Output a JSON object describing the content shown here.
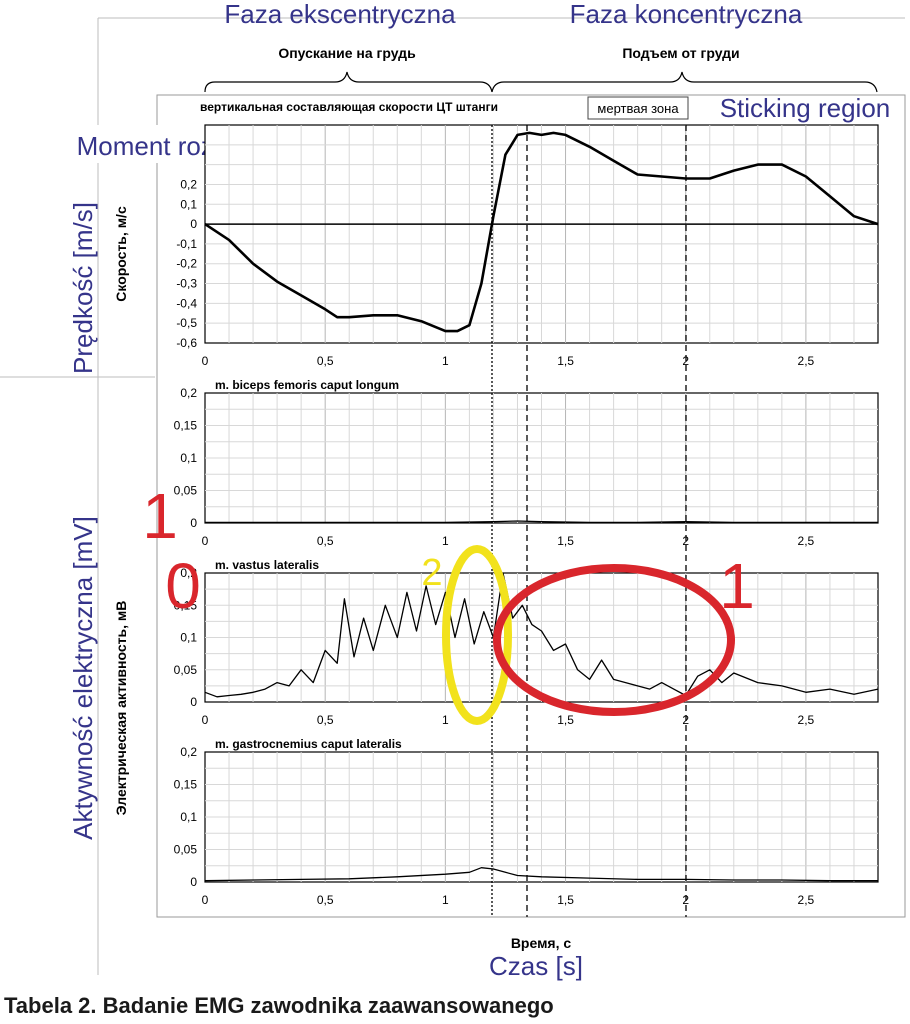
{
  "caption": "Tabela 2. Badanie EMG zawodnika zaawansowanego",
  "phases": {
    "eccentric_pl": "Faza ekscentryczna",
    "concentric_pl": "Faza koncentryczna",
    "eccentric_ru": "Опускание на грудь",
    "concentric_ru": "Подъем от груди"
  },
  "annotations": {
    "velocity_component_ru": "вертикальная составляющая скорости ЦТ штанги",
    "dead_zone_ru": "мертвая зона",
    "sticking_region": "Sticking region",
    "press_start": "Moment rozpoczęcia wyciskania",
    "marker_1_left": "1",
    "marker_0": "0",
    "marker_2": "2",
    "marker_1_right": "1"
  },
  "axes": {
    "velocity_ylabel_ru": "Скорость, м/с",
    "velocity_ylabel_pl": "Prędkość [m/s]",
    "emg_ylabel_ru": "Электрическая активность, мВ",
    "emg_ylabel_pl": "Aktywność elektryczna [mV]",
    "xlabel_ru": "Время, с",
    "xlabel_pl": "Czas [s]",
    "x_ticks": [
      "0",
      "0,5",
      "1",
      "1,5",
      "2",
      "2,5"
    ],
    "velocity_y_ticks": [
      "0,2",
      "0,1",
      "0",
      "-0,1",
      "-0,2",
      "-0,3",
      "-0,4",
      "-0,5",
      "-0,6"
    ],
    "emg_y_ticks": [
      "0,2",
      "0,15",
      "0,1",
      "0,05",
      "0"
    ]
  },
  "colors": {
    "text_blue": "#35348a",
    "marker_red": "#d9262c",
    "marker_yellow": "#f2e21c",
    "grid": "#c8c8c8",
    "line": "#000000"
  },
  "chart_data": [
    {
      "type": "line",
      "title": "вертикальная составляющая скорости ЦТ штанги",
      "xlabel": "Время, с",
      "ylabel": "Скорость, м/с",
      "xlim": [
        0,
        2.8
      ],
      "ylim": [
        -0.6,
        0.5
      ],
      "grid": true,
      "x": [
        0,
        0.1,
        0.2,
        0.3,
        0.4,
        0.5,
        0.55,
        0.6,
        0.7,
        0.8,
        0.9,
        1.0,
        1.05,
        1.1,
        1.15,
        1.2,
        1.25,
        1.3,
        1.35,
        1.4,
        1.45,
        1.5,
        1.6,
        1.7,
        1.8,
        1.9,
        2.0,
        2.1,
        2.2,
        2.3,
        2.4,
        2.5,
        2.6,
        2.7,
        2.8
      ],
      "values": [
        0,
        -0.08,
        -0.2,
        -0.29,
        -0.36,
        -0.43,
        -0.47,
        -0.47,
        -0.46,
        -0.46,
        -0.49,
        -0.54,
        -0.54,
        -0.51,
        -0.3,
        0.04,
        0.35,
        0.45,
        0.46,
        0.45,
        0.46,
        0.45,
        0.39,
        0.32,
        0.25,
        0.24,
        0.23,
        0.23,
        0.27,
        0.3,
        0.3,
        0.24,
        0.14,
        0.04,
        0.0
      ]
    },
    {
      "type": "line",
      "title": "m. biceps femoris caput longum",
      "xlabel": "Время, с",
      "ylabel": "Электрическая активность, мВ",
      "xlim": [
        0,
        2.8
      ],
      "ylim": [
        0,
        0.2
      ],
      "grid": true,
      "x": [
        0,
        0.2,
        0.4,
        0.6,
        0.8,
        1.0,
        1.2,
        1.3,
        1.4,
        1.6,
        1.8,
        2.0,
        2.2,
        2.4,
        2.6,
        2.8
      ],
      "values": [
        0.001,
        0.001,
        0.001,
        0.001,
        0.001,
        0.001,
        0.002,
        0.003,
        0.002,
        0.001,
        0.001,
        0.002,
        0.001,
        0.001,
        0.001,
        0.001
      ]
    },
    {
      "type": "line",
      "title": "m. vastus lateralis",
      "xlabel": "Время, с",
      "ylabel": "Электрическая активность, мВ",
      "xlim": [
        0,
        2.8
      ],
      "ylim": [
        0,
        0.2
      ],
      "grid": true,
      "x": [
        0,
        0.05,
        0.1,
        0.15,
        0.2,
        0.25,
        0.3,
        0.35,
        0.4,
        0.45,
        0.5,
        0.55,
        0.58,
        0.62,
        0.66,
        0.7,
        0.75,
        0.8,
        0.84,
        0.88,
        0.92,
        0.96,
        1.0,
        1.04,
        1.08,
        1.12,
        1.16,
        1.2,
        1.24,
        1.28,
        1.32,
        1.36,
        1.4,
        1.45,
        1.5,
        1.55,
        1.6,
        1.65,
        1.7,
        1.75,
        1.8,
        1.85,
        1.9,
        1.95,
        2.0,
        2.05,
        2.1,
        2.15,
        2.2,
        2.3,
        2.4,
        2.5,
        2.6,
        2.7,
        2.8
      ],
      "values": [
        0.015,
        0.008,
        0.01,
        0.012,
        0.015,
        0.02,
        0.03,
        0.025,
        0.05,
        0.03,
        0.08,
        0.06,
        0.16,
        0.07,
        0.13,
        0.08,
        0.15,
        0.1,
        0.17,
        0.11,
        0.18,
        0.12,
        0.17,
        0.1,
        0.16,
        0.09,
        0.14,
        0.1,
        0.2,
        0.13,
        0.15,
        0.12,
        0.11,
        0.08,
        0.09,
        0.05,
        0.035,
        0.065,
        0.035,
        0.03,
        0.025,
        0.02,
        0.03,
        0.02,
        0.01,
        0.04,
        0.05,
        0.03,
        0.045,
        0.03,
        0.025,
        0.015,
        0.02,
        0.012,
        0.02
      ]
    },
    {
      "type": "line",
      "title": "m. gastrocnemius caput lateralis",
      "xlabel": "Время, с",
      "ylabel": "Электрическая активность, мВ",
      "xlim": [
        0,
        2.8
      ],
      "ylim": [
        0,
        0.2
      ],
      "grid": true,
      "x": [
        0,
        0.2,
        0.4,
        0.6,
        0.8,
        1.0,
        1.1,
        1.15,
        1.2,
        1.25,
        1.3,
        1.4,
        1.6,
        1.8,
        2.0,
        2.2,
        2.4,
        2.6,
        2.8
      ],
      "values": [
        0.002,
        0.003,
        0.004,
        0.005,
        0.008,
        0.012,
        0.015,
        0.022,
        0.02,
        0.015,
        0.01,
        0.008,
        0.006,
        0.004,
        0.004,
        0.003,
        0.003,
        0.002,
        0.002
      ]
    }
  ]
}
